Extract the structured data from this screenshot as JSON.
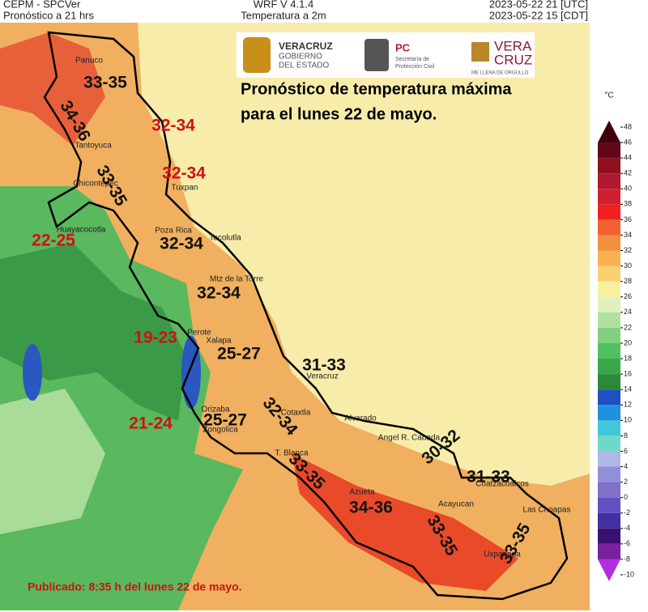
{
  "header": {
    "left": [
      "CEPM - SPCVer",
      "Pronóstico a 21 hrs"
    ],
    "center": [
      "WRF V 4.1.4",
      "Temperatura a 2m"
    ],
    "right": [
      "2023-05-22 21 [UTC]",
      "2023-05-22 15 [CDT]"
    ]
  },
  "logos": {
    "veracruz": [
      "VERACRUZ",
      "GOBIERNO",
      "DEL ESTADO"
    ],
    "pc": [
      "PC",
      "Secretaría de",
      "Protección Civil"
    ],
    "brand": [
      "VERA",
      "CRUZ",
      "ME LLENA DE ORGULLO"
    ]
  },
  "title": [
    "Pronóstico de temperatura máxima",
    "para el lunes 22 de mayo."
  ],
  "footer": "Publicado: 8:35 h del lunes 22 de mayo.",
  "places": [
    "Panuco",
    "Tantoyuca",
    "Chicontepec",
    "Tuxpan",
    "Huayacocotla",
    "Poza Rica",
    "Tecolutla",
    "Mtz de la Torre",
    "Perote",
    "Xalapa",
    "Veracruz",
    "Alvarado",
    "Orizaba",
    "Zongolica",
    "Cotaxtla",
    "T. Blanca",
    "Angel R. Cabada",
    "Coatzacoalcos",
    "Acayucan",
    "Azueta",
    "Las Choapas",
    "Uxpanapa"
  ],
  "ranges": [
    {
      "label": "33-35",
      "color": "#111111"
    },
    {
      "label": "34-36",
      "color": "#111111"
    },
    {
      "label": "32-34",
      "color": "#d01010"
    },
    {
      "label": "32-34",
      "color": "#d01010"
    },
    {
      "label": "33-35",
      "color": "#111111"
    },
    {
      "label": "22-25",
      "color": "#d01010"
    },
    {
      "label": "32-34",
      "color": "#111111"
    },
    {
      "label": "32-34",
      "color": "#111111"
    },
    {
      "label": "19-23",
      "color": "#d01010"
    },
    {
      "label": "25-27",
      "color": "#111111"
    },
    {
      "label": "31-33",
      "color": "#111111"
    },
    {
      "label": "21-24",
      "color": "#d01010"
    },
    {
      "label": "25-27",
      "color": "#111111"
    },
    {
      "label": "32-34",
      "color": "#111111"
    },
    {
      "label": "33-35",
      "color": "#111111"
    },
    {
      "label": "30-32",
      "color": "#111111"
    },
    {
      "label": "31-33",
      "color": "#111111"
    },
    {
      "label": "34-36",
      "color": "#111111"
    },
    {
      "label": "33-35",
      "color": "#111111"
    },
    {
      "label": "33-35",
      "color": "#111111"
    }
  ],
  "colorbar": {
    "unit": "°C",
    "ticks": [
      -10,
      -8,
      -6,
      -4,
      -2,
      0,
      2,
      4,
      6,
      8,
      10,
      12,
      14,
      16,
      18,
      20,
      22,
      24,
      26,
      28,
      30,
      32,
      34,
      36,
      38,
      40,
      42,
      44,
      46,
      48
    ],
    "colors": [
      "#b030e0",
      "#7a20a0",
      "#3a1070",
      "#4030a0",
      "#6050c0",
      "#8070c8",
      "#9090d8",
      "#b0b8e8",
      "#70d8c8",
      "#40c8d8",
      "#2090e0",
      "#2050c0",
      "#2a8a3a",
      "#3aa84a",
      "#50c060",
      "#80d080",
      "#b0e0a0",
      "#e0f0c0",
      "#f8f0a0",
      "#f8d070",
      "#f8b050",
      "#f09040",
      "#f06030",
      "#f02020",
      "#d02030",
      "#b01830",
      "#901020",
      "#600818",
      "#400010"
    ]
  }
}
